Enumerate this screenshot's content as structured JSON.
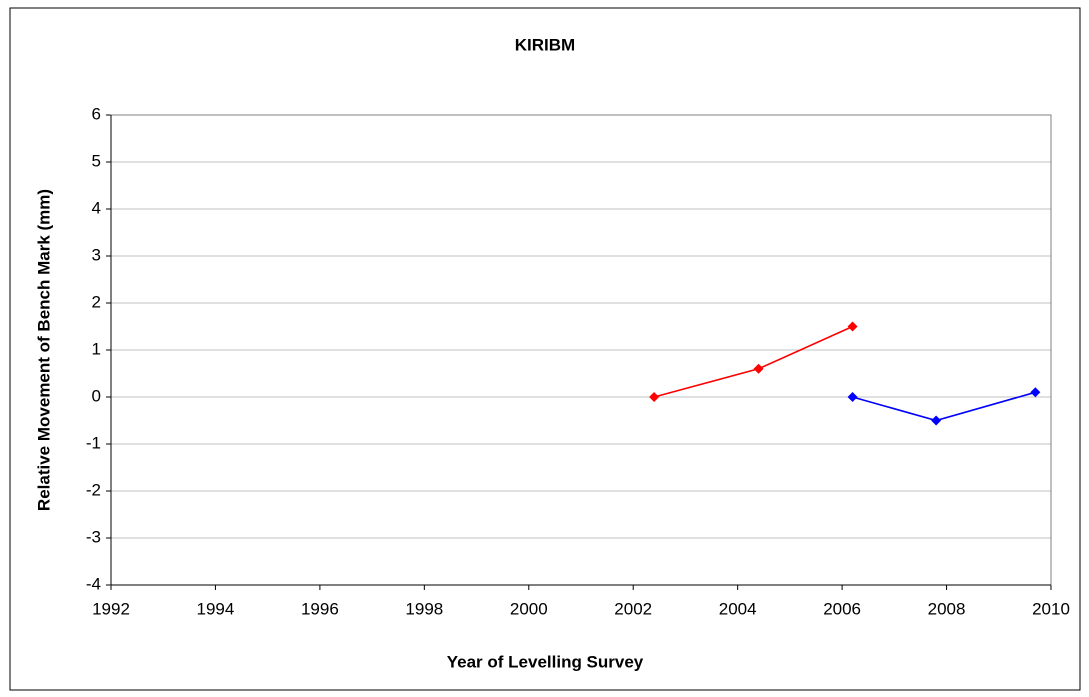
{
  "chart_data": {
    "type": "line",
    "title": "KIRIBM",
    "x_label": "Year of Levelling Survey",
    "y_label": "Relative Movement of Bench Mark (mm)",
    "series": [
      {
        "color": "#ff0000",
        "x": [
          2002.4,
          2004.4,
          2006.2
        ],
        "values": [
          0,
          0.6,
          1.5
        ]
      },
      {
        "color": "#0000ff",
        "x": [
          2006.2,
          2007.8,
          2009.7
        ],
        "values": [
          0,
          -0.5,
          0.1
        ]
      }
    ],
    "xlim": [
      1992,
      2010
    ],
    "xticks": [
      1992,
      1994,
      1996,
      1998,
      2000,
      2002,
      2004,
      2006,
      2008,
      2010
    ],
    "ylim": [
      -4,
      6
    ],
    "yticks": [
      -4,
      -3,
      -2,
      -1,
      0,
      1,
      2,
      3,
      4,
      5,
      6
    ],
    "grid": true
  }
}
